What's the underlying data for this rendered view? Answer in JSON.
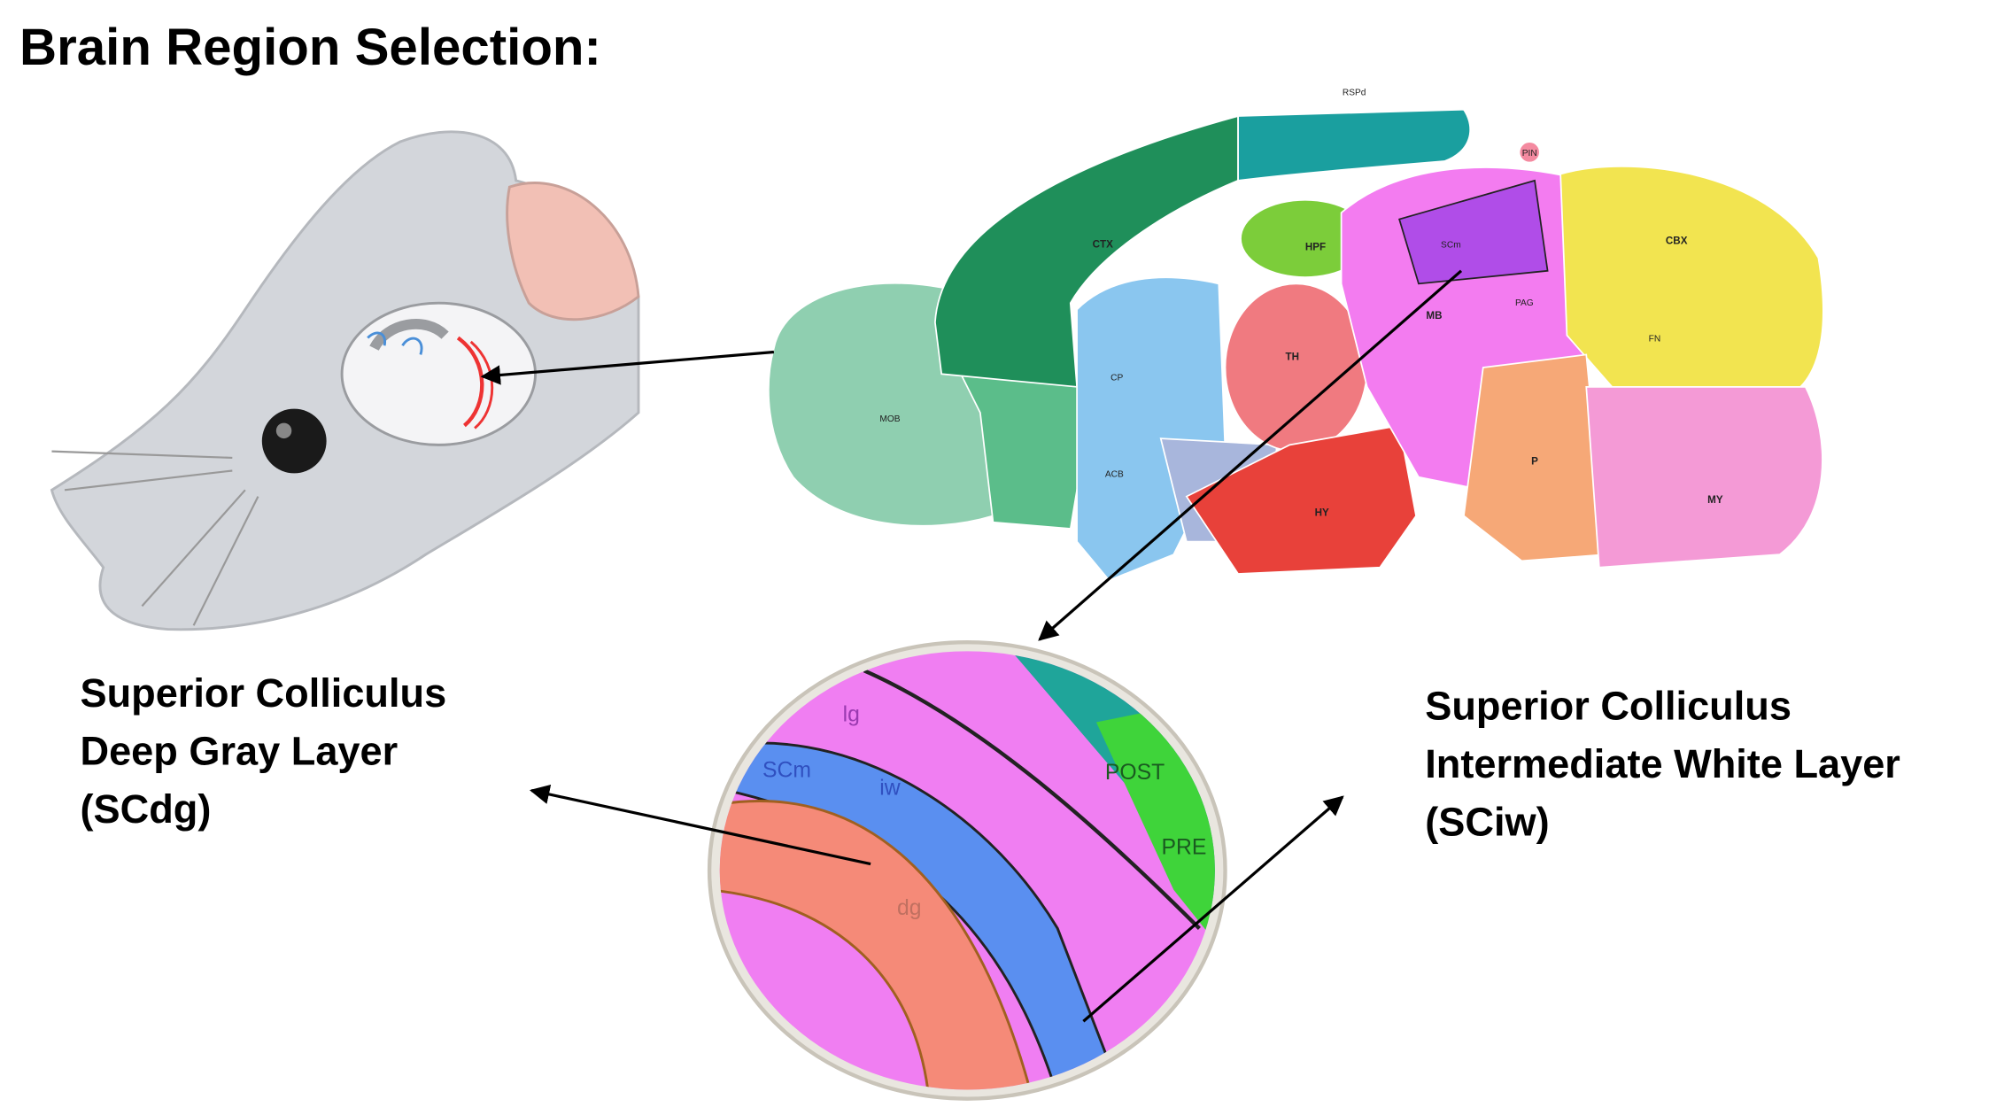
{
  "header": {
    "title": "Brain Region Selection:"
  },
  "labels": [
    {
      "lines": [
        "Superior Colliculus",
        "Deep Gray Layer",
        "(SCdg)"
      ]
    },
    {
      "lines": [
        "Superior Colliculus",
        "Intermediate White Layer",
        "(SCiw)"
      ]
    }
  ],
  "atlas": {
    "regions": [
      "MOB",
      "CTX",
      "HPF",
      "TH",
      "HY",
      "MB",
      "CBX",
      "MY",
      "P",
      "CP",
      "SCm",
      "PAG",
      "FN",
      "ACB",
      "RSPd",
      "PIN"
    ]
  },
  "zoom": {
    "regions": [
      "lg",
      "SCm",
      "iw",
      "dg",
      "POST",
      "PRE"
    ]
  }
}
